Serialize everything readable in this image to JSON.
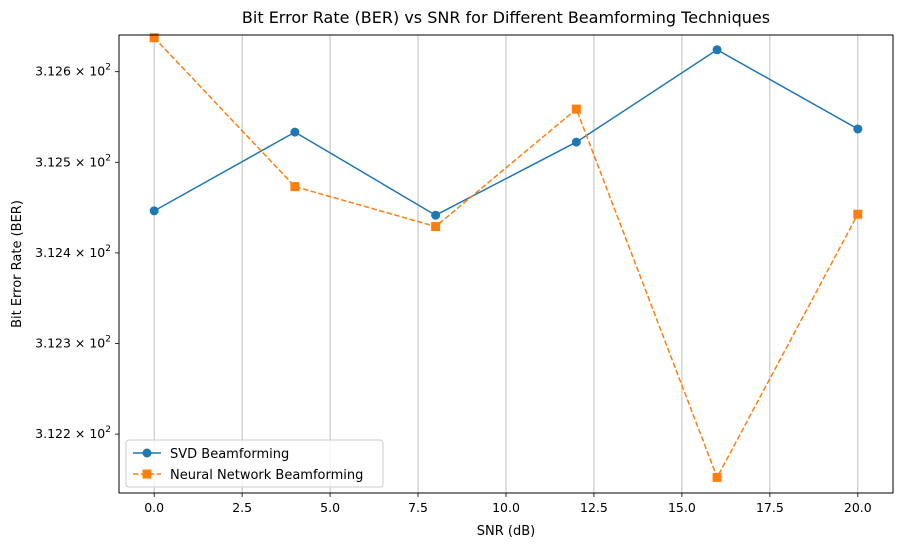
{
  "chart_data": {
    "type": "line",
    "title": "Bit Error Rate (BER) vs SNR for Different Beamforming Techniques",
    "xlabel": "SNR (dB)",
    "ylabel": "Bit Error Rate (BER)",
    "xlim": [
      -1.0,
      21.0
    ],
    "ylim": [
      312.135,
      312.6405
    ],
    "x": [
      0,
      4,
      8,
      12,
      16,
      20
    ],
    "xticks": [
      0.0,
      2.5,
      5.0,
      7.5,
      10.0,
      12.5,
      15.0,
      17.5,
      20.0
    ],
    "xtick_labels": [
      "0.0",
      "2.5",
      "5.0",
      "7.5",
      "10.0",
      "12.5",
      "15.0",
      "17.5",
      "20.0"
    ],
    "yticks": [
      312.2,
      312.3,
      312.4,
      312.5,
      312.6
    ],
    "ytick_mantissas": [
      "3.122",
      "3.123",
      "3.124",
      "3.125",
      "3.126"
    ],
    "ytick_base": "10",
    "ytick_exponent": "2",
    "grid": "x-only",
    "legend_position": "lower-left",
    "series": [
      {
        "name": "SVD Beamforming",
        "values": [
          312.4464,
          312.5333,
          312.4416,
          312.5223,
          312.6242,
          312.5368
        ],
        "color": "#1f77b4",
        "linestyle": "solid",
        "marker": "circle"
      },
      {
        "name": "Neural Network Beamforming",
        "values": [
          312.6375,
          312.4732,
          312.4291,
          312.5587,
          312.1522,
          312.4427
        ],
        "color": "#ff7f0e",
        "linestyle": "dashed",
        "marker": "square"
      }
    ]
  }
}
